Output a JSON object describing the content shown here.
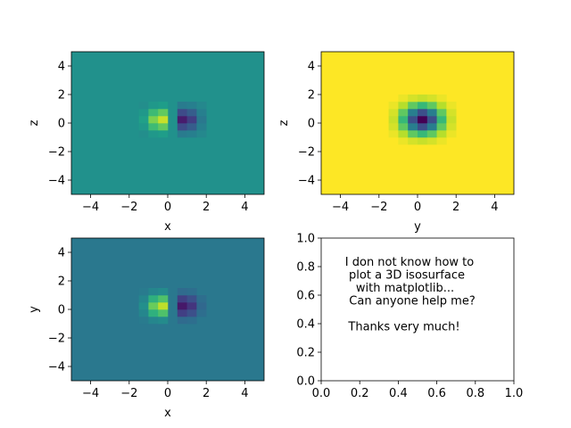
{
  "chart_data": [
    {
      "type": "heatmap",
      "panel": "top-left",
      "xlabel": "x",
      "ylabel": "z",
      "xlim": [
        -5,
        5
      ],
      "ylim": [
        -5,
        5
      ],
      "xticks": [
        "−4",
        "−2",
        "0",
        "2",
        "4"
      ],
      "yticks": [
        "4",
        "2",
        "0",
        "−2",
        "−4"
      ],
      "field": "dipole",
      "colormap": "viridis",
      "background_color": "#21918c",
      "max_location": {
        "x": -0.25,
        "y": 0.25
      },
      "min_location": {
        "x": 0.75,
        "y": 0.25
      }
    },
    {
      "type": "heatmap",
      "panel": "top-right",
      "xlabel": "y",
      "ylabel": "z",
      "xlim": [
        -5,
        5
      ],
      "ylim": [
        -5,
        5
      ],
      "xticks": [
        "−4",
        "−2",
        "0",
        "2",
        "4"
      ],
      "yticks": [
        "4",
        "2",
        "0",
        "−2",
        "−4"
      ],
      "field": "well",
      "colormap": "viridis",
      "background_color": "#fde725",
      "min_location": {
        "x": 0.25,
        "y": 0.25
      }
    },
    {
      "type": "heatmap",
      "panel": "bottom-left",
      "xlabel": "x",
      "ylabel": "y",
      "xlim": [
        -5,
        5
      ],
      "ylim": [
        -5,
        5
      ],
      "xticks": [
        "−4",
        "−2",
        "0",
        "2",
        "4"
      ],
      "yticks": [
        "4",
        "2",
        "0",
        "−2",
        "−4"
      ],
      "field": "dipole",
      "colormap": "viridis",
      "background_color": "#2a788e",
      "max_location": {
        "x": -0.25,
        "y": 0.25
      },
      "min_location": {
        "x": 0.75,
        "y": 0.25
      }
    },
    {
      "type": "table",
      "panel": "bottom-right",
      "xlim": [
        0,
        1
      ],
      "ylim": [
        0,
        1
      ],
      "xticks": [
        "0.0",
        "0.2",
        "0.4",
        "0.6",
        "0.8",
        "1.0"
      ],
      "yticks": [
        "1.0",
        "0.8",
        "0.6",
        "0.4",
        "0.2",
        "0.0"
      ],
      "text_lines": [
        "I don not know how to",
        "plot a 3D isosurface",
        "with matplotlib...",
        "Can anyone help me?",
        "",
        "Thanks very much!"
      ]
    }
  ]
}
